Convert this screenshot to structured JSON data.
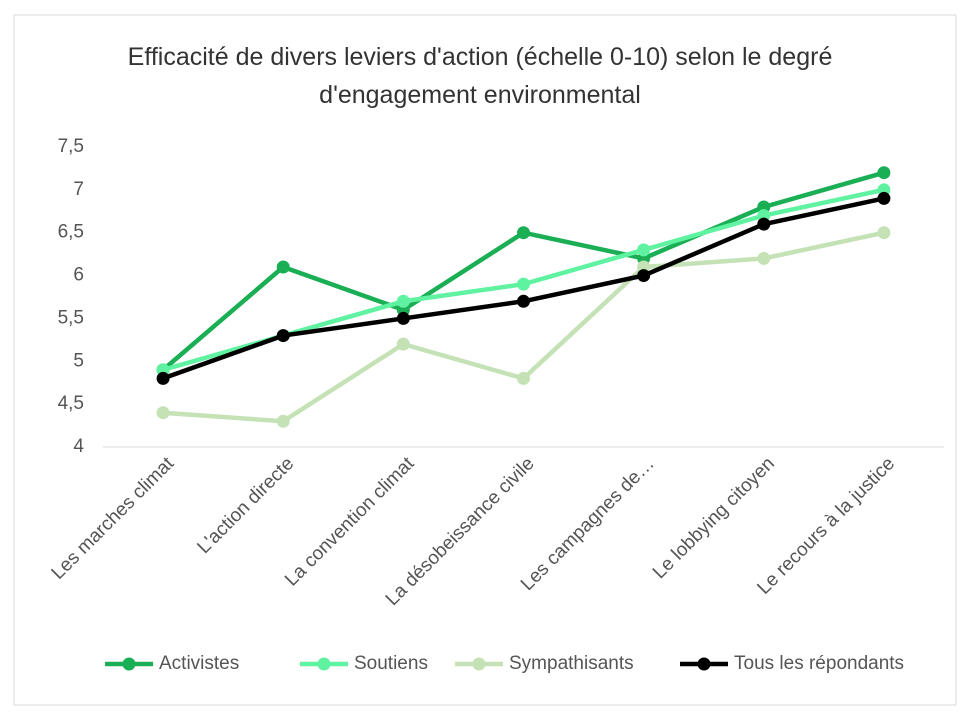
{
  "chart_data": {
    "type": "line",
    "title": "Efficacité de divers leviers d'action (échelle 0-10) selon le degré d'engagement environmental",
    "categories": [
      "Les marches climat",
      "L'action directe",
      "La convention climat",
      "La désobeissance civile",
      "Les campagnes de…",
      "Le lobbying citoyen",
      "Le recours à la justice"
    ],
    "series": [
      {
        "name": "Activistes",
        "color": "#1aae55",
        "values": [
          4.9,
          6.1,
          5.6,
          6.5,
          6.2,
          6.8,
          7.2
        ]
      },
      {
        "name": "Soutiens",
        "color": "#5ff2a0",
        "values": [
          4.9,
          5.3,
          5.7,
          5.9,
          6.3,
          6.7,
          7.0
        ]
      },
      {
        "name": "Sympathisants",
        "color": "#c4e2b6",
        "values": [
          4.4,
          4.3,
          5.2,
          4.8,
          6.1,
          6.2,
          6.5
        ]
      },
      {
        "name": "Tous les répondants",
        "color": "#000000",
        "values": [
          4.8,
          5.3,
          5.5,
          5.7,
          6.0,
          6.6,
          6.9
        ]
      }
    ],
    "ylim": [
      4,
      7.5
    ],
    "yticks": [
      4,
      {
        "value": 4.5,
        "label": "4,5"
      },
      5,
      {
        "value": 5.5,
        "label": "5,5"
      },
      6,
      {
        "value": 6.5,
        "label": "6,5"
      },
      7,
      {
        "value": 7.5,
        "label": "7,5"
      }
    ],
    "legend": "bottom"
  }
}
